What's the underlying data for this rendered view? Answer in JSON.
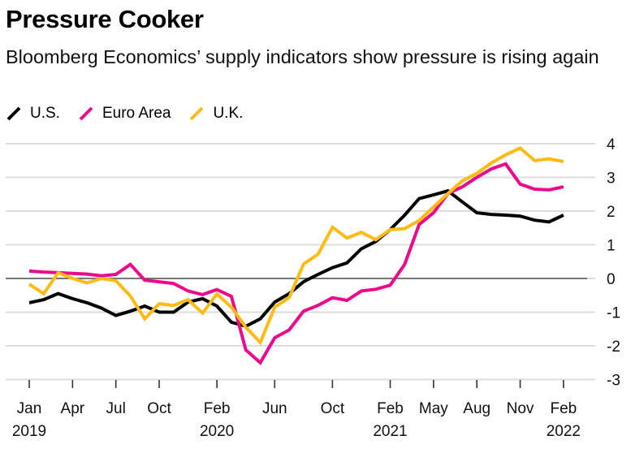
{
  "chart_data": {
    "type": "line",
    "title": "Pressure Cooker",
    "subtitle": "Bloomberg Economics’ supply indicators show pressure is rising again",
    "xlabel": "",
    "ylabel": "",
    "ylim": [
      -3,
      4
    ],
    "yticks": [
      4,
      3,
      2,
      1,
      0,
      -1,
      -2,
      -3
    ],
    "grid": true,
    "legend_position": "top-left",
    "x": [
      "2019-01",
      "2019-02",
      "2019-03",
      "2019-04",
      "2019-05",
      "2019-06",
      "2019-07",
      "2019-08",
      "2019-09",
      "2019-10",
      "2019-11",
      "2019-12",
      "2020-01",
      "2020-02",
      "2020-03",
      "2020-04",
      "2020-05",
      "2020-06",
      "2020-07",
      "2020-08",
      "2020-09",
      "2020-10",
      "2020-11",
      "2020-12",
      "2021-01",
      "2021-02",
      "2021-03",
      "2021-04",
      "2021-05",
      "2021-06",
      "2021-07",
      "2021-08",
      "2021-09",
      "2021-10",
      "2021-11",
      "2021-12",
      "2022-01",
      "2022-02"
    ],
    "xticks": [
      {
        "index": 0,
        "label": "Jan",
        "year": "2019"
      },
      {
        "index": 3,
        "label": "Apr",
        "year": ""
      },
      {
        "index": 6,
        "label": "Jul",
        "year": ""
      },
      {
        "index": 9,
        "label": "Oct",
        "year": ""
      },
      {
        "index": 13,
        "label": "Feb",
        "year": "2020"
      },
      {
        "index": 17,
        "label": "Jun",
        "year": ""
      },
      {
        "index": 21,
        "label": "Oct",
        "year": ""
      },
      {
        "index": 25,
        "label": "Feb",
        "year": "2021"
      },
      {
        "index": 28,
        "label": "May",
        "year": ""
      },
      {
        "index": 31,
        "label": "Aug",
        "year": ""
      },
      {
        "index": 34,
        "label": "Nov",
        "year": ""
      },
      {
        "index": 37,
        "label": "Feb",
        "year": "2022"
      }
    ],
    "series": [
      {
        "name": "U.S.",
        "color": "#000000",
        "values": [
          -0.72,
          -0.63,
          -0.45,
          -0.6,
          -0.72,
          -0.88,
          -1.1,
          -0.97,
          -0.82,
          -1.0,
          -1.0,
          -0.7,
          -0.6,
          -0.82,
          -1.3,
          -1.42,
          -1.2,
          -0.7,
          -0.45,
          -0.1,
          0.12,
          0.32,
          0.46,
          0.88,
          1.1,
          1.45,
          1.88,
          2.37,
          2.48,
          2.6,
          2.27,
          1.95,
          1.9,
          1.88,
          1.85,
          1.73,
          1.68,
          1.88
        ]
      },
      {
        "name": "Euro Area",
        "color": "#ec0a8c",
        "values": [
          0.22,
          0.19,
          0.17,
          0.15,
          0.13,
          0.08,
          0.12,
          0.42,
          -0.05,
          -0.1,
          -0.15,
          -0.37,
          -0.48,
          -0.33,
          -0.53,
          -2.12,
          -2.5,
          -1.76,
          -1.53,
          -0.97,
          -0.8,
          -0.57,
          -0.65,
          -0.37,
          -0.32,
          -0.2,
          0.42,
          1.6,
          1.95,
          2.52,
          2.72,
          3.0,
          3.25,
          3.4,
          2.8,
          2.65,
          2.63,
          2.72
        ]
      },
      {
        "name": "U.K.",
        "color": "#fdbb13",
        "values": [
          -0.17,
          -0.45,
          0.17,
          0.0,
          -0.13,
          0.0,
          -0.07,
          -0.52,
          -1.2,
          -0.75,
          -0.8,
          -0.63,
          -1.03,
          -0.46,
          -0.85,
          -1.45,
          -1.9,
          -0.85,
          -0.57,
          0.43,
          0.72,
          1.52,
          1.2,
          1.37,
          1.15,
          1.45,
          1.48,
          1.72,
          2.12,
          2.52,
          2.9,
          3.12,
          3.43,
          3.67,
          3.87,
          3.5,
          3.55,
          3.47
        ]
      }
    ]
  }
}
